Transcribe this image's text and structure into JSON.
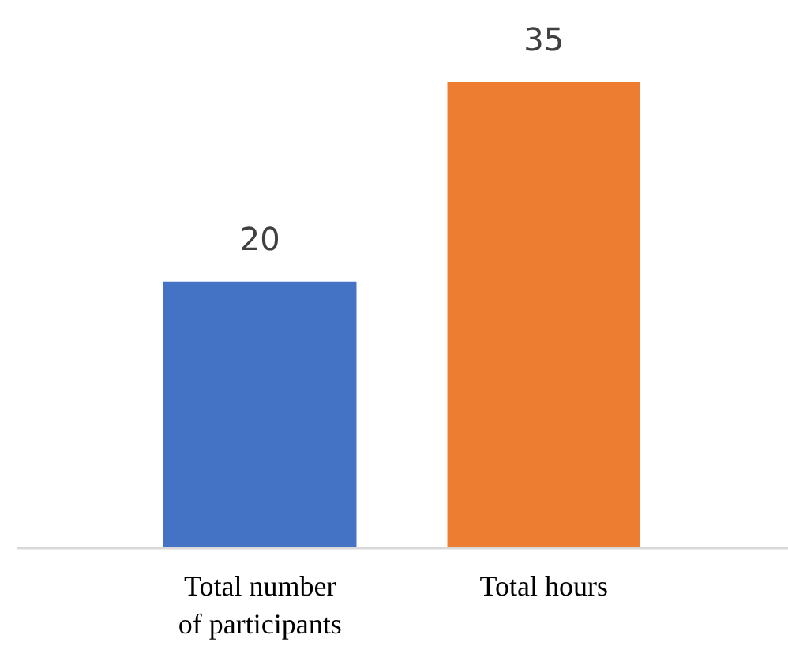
{
  "chart_data": {
    "type": "bar",
    "categories": [
      "Total number\nof participants",
      "Total hours"
    ],
    "values": [
      20,
      35
    ],
    "colors": [
      "#4472c4",
      "#ed7d31"
    ],
    "data_labels": true
  }
}
